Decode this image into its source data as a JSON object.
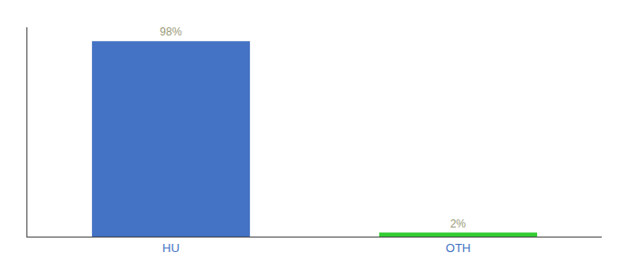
{
  "chart_data": {
    "type": "bar",
    "categories": [
      "HU",
      "OTH"
    ],
    "values": [
      98,
      2
    ],
    "value_labels": [
      "98%",
      "2%"
    ],
    "data_labels": true,
    "colors": [
      "#4472c4",
      "#33cc33"
    ],
    "ylim": [
      0,
      105
    ],
    "grid": false,
    "tick_labels": "x"
  }
}
